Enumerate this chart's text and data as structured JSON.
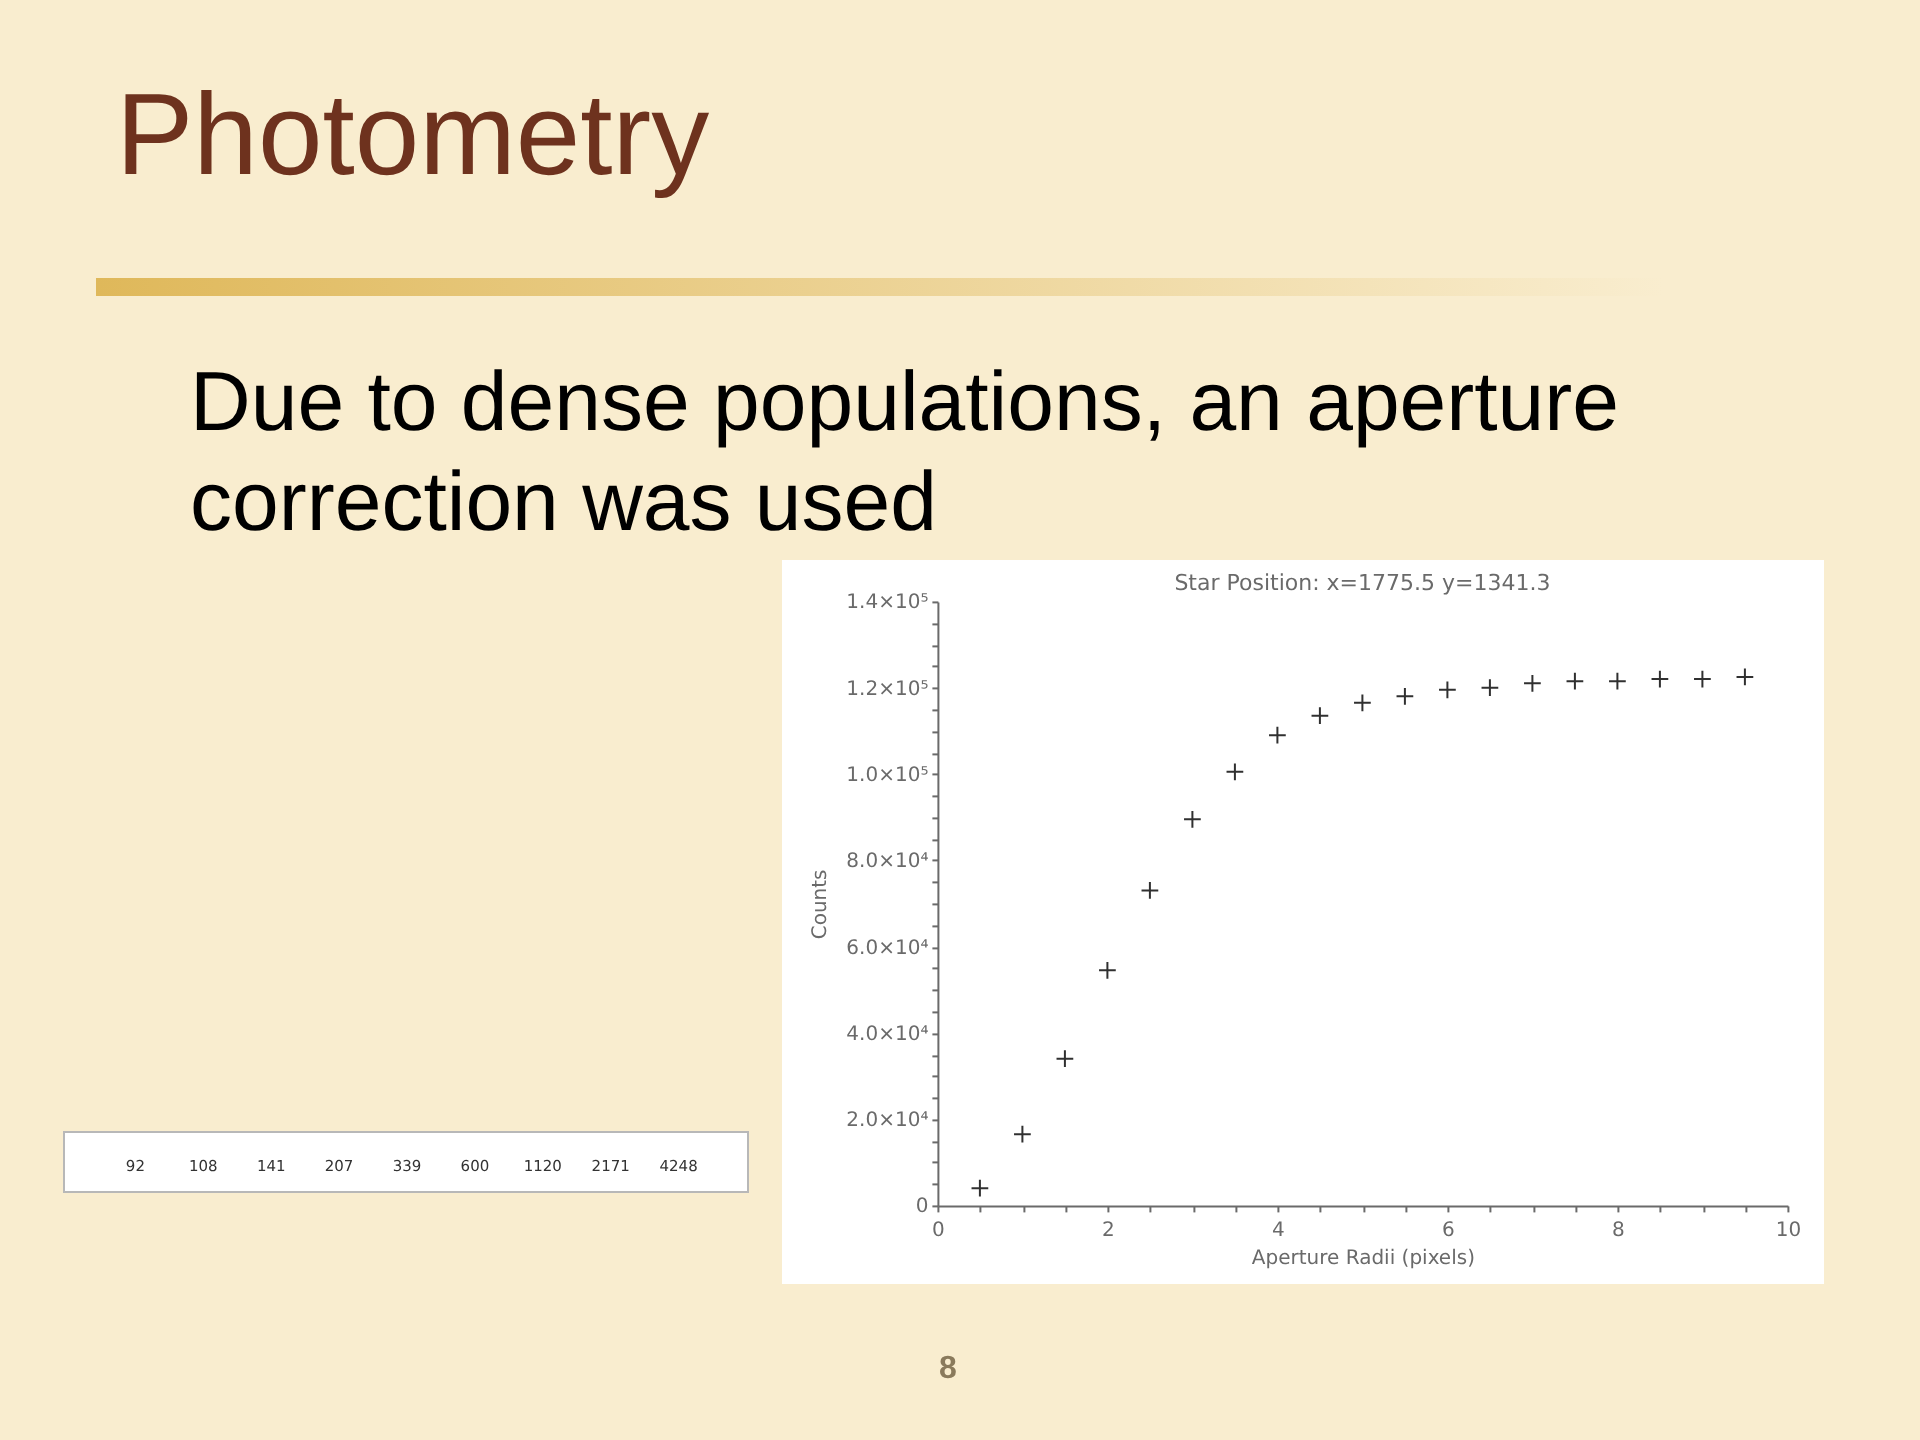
{
  "chart_data": {
    "type": "scatter",
    "title": "Photometry",
    "subtitle": "Due to dense populations, an aperture correction was used",
    "xlabel": "Aperture Radii (pixels)",
    "ylabel": "Counts",
    "annotations": [
      "Star Position: x=1775.5 y=1341.3",
      "92",
      "108",
      "141",
      "207",
      "339",
      "600",
      "1120",
      "2171",
      "4248",
      "8"
    ],
    "x": [
      0.5,
      1,
      1.5,
      2,
      2.5,
      3,
      3.5,
      4,
      4.5,
      5,
      5.5,
      6,
      6.5,
      7,
      7.5,
      8,
      8.5,
      9,
      9.5
    ],
    "values": [
      4000,
      16500,
      34000,
      54500,
      73000,
      89500,
      100500,
      109000,
      113500,
      116500,
      118000,
      119500,
      120000,
      121000,
      121500,
      121500,
      122000,
      122000,
      122500
    ],
    "color": "#303030",
    "marker": "cross",
    "xlim": [
      0,
      10
    ],
    "xticks": [
      0,
      {
        "value": 0.5,
        "label": null
      },
      {
        "value": 1,
        "label": null
      },
      {
        "value": 1.5,
        "label": null
      },
      2,
      {
        "value": 2.5,
        "label": null
      },
      {
        "value": 3,
        "label": null
      },
      {
        "value": 3.5,
        "label": null
      },
      4,
      {
        "value": 4.5,
        "label": null
      },
      {
        "value": 5,
        "label": null
      },
      {
        "value": 5.5,
        "label": null
      },
      6,
      {
        "value": 6.5,
        "label": null
      },
      {
        "value": 7,
        "label": null
      },
      {
        "value": 7.5,
        "label": null
      },
      8,
      {
        "value": 8.5,
        "label": null
      },
      {
        "value": 9,
        "label": null
      },
      {
        "value": 9.5,
        "label": null
      },
      10
    ],
    "ylim": [
      0,
      140000
    ],
    "yticks": [
      0,
      {
        "value": 5000,
        "label": null
      },
      {
        "value": 10000,
        "label": null
      },
      {
        "value": 15000,
        "label": null
      },
      {
        "value": 20000,
        "label": "2.0×10⁴"
      },
      {
        "value": 25000,
        "label": null
      },
      {
        "value": 30000,
        "label": null
      },
      {
        "value": 35000,
        "label": null
      },
      {
        "value": 40000,
        "label": "4.0×10⁴"
      },
      {
        "value": 45000,
        "label": null
      },
      {
        "value": 50000,
        "label": null
      },
      {
        "value": 55000,
        "label": null
      },
      {
        "value": 60000,
        "label": "6.0×10⁴"
      },
      {
        "value": 65000,
        "label": null
      },
      {
        "value": 70000,
        "label": null
      },
      {
        "value": 75000,
        "label": null
      },
      {
        "value": 80000,
        "label": "8.0×10⁴"
      },
      {
        "value": 85000,
        "label": null
      },
      {
        "value": 90000,
        "label": null
      },
      {
        "value": 95000,
        "label": null
      },
      {
        "value": 100000,
        "label": "1.0×10⁵"
      },
      {
        "value": 105000,
        "label": null
      },
      {
        "value": 110000,
        "label": null
      },
      {
        "value": 115000,
        "label": null
      },
      {
        "value": 120000,
        "label": "1.2×10⁵"
      },
      {
        "value": 125000,
        "label": null
      },
      {
        "value": 130000,
        "label": null
      },
      {
        "value": 135000,
        "label": null
      },
      {
        "value": 140000,
        "label": "1.4×10⁵"
      }
    ]
  }
}
